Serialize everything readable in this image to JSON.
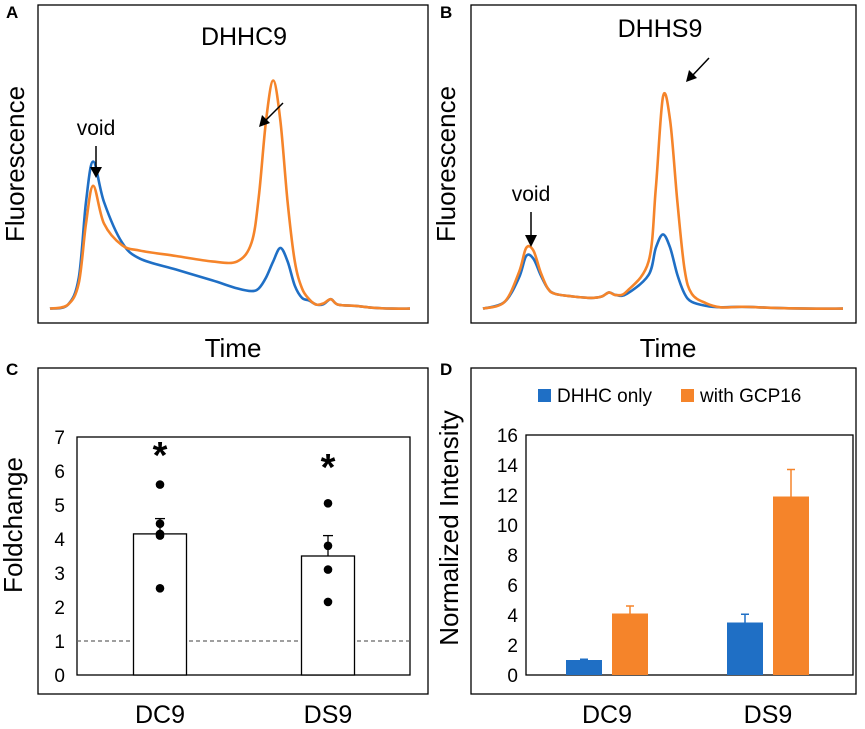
{
  "figure": {
    "colors": {
      "blue": "#1f6fc5",
      "orange": "#f5842a",
      "axis": "#000000",
      "ref_line": "#666666"
    }
  },
  "chart_data": [
    {
      "panel": "A",
      "type": "line",
      "title": "DHHC9",
      "xlabel": "Time",
      "ylabel": "Fluorescence",
      "annotations": [
        "void"
      ],
      "x": [
        0,
        5,
        8,
        10,
        12,
        15,
        20,
        25,
        35,
        45,
        52,
        56,
        58,
        60,
        62,
        64,
        66,
        68,
        70,
        72,
        74,
        76,
        78,
        80,
        85,
        90,
        95,
        100
      ],
      "series": [
        {
          "name": "DHHC only",
          "color": "#1f6fc5",
          "values": [
            0.5,
            2,
            12,
            40,
            55,
            40,
            25,
            19,
            15,
            11,
            8,
            7,
            8,
            12,
            18,
            23,
            18,
            9,
            4.5,
            3.5,
            2,
            2.2,
            4,
            2,
            1.5,
            0.8,
            0.5,
            0.5
          ]
        },
        {
          "name": "with GCP16",
          "color": "#f5842a",
          "values": [
            0.5,
            2,
            10,
            32,
            46,
            32,
            24,
            22,
            20,
            18,
            18,
            25,
            42,
            70,
            85,
            70,
            40,
            18,
            8,
            4,
            2,
            2.5,
            4,
            2,
            1.5,
            0.8,
            0.5,
            0.5
          ]
        }
      ]
    },
    {
      "panel": "B",
      "type": "line",
      "title": "DHHS9",
      "xlabel": "Time",
      "ylabel": "Fluorescence",
      "annotations": [
        "void"
      ],
      "x": [
        0,
        6,
        10,
        12,
        14,
        16,
        18,
        20,
        25,
        30,
        33,
        35,
        37,
        40,
        46,
        48,
        50,
        52,
        54,
        56,
        58,
        62,
        66,
        72,
        80,
        90,
        100
      ],
      "series": [
        {
          "name": "DHHC only",
          "color": "#1f6fc5",
          "values": [
            0.5,
            3,
            12,
            20,
            19,
            13,
            8,
            6,
            5,
            4.5,
            5,
            6.5,
            5.5,
            6,
            13,
            23,
            28,
            23,
            13,
            6,
            3,
            1.5,
            1,
            1.2,
            0.8,
            0.5,
            0.5
          ]
        },
        {
          "name": "with GCP16",
          "color": "#f5842a",
          "values": [
            0.5,
            3,
            14,
            23,
            22,
            14,
            8,
            6,
            5,
            4.5,
            5,
            6.5,
            5.5,
            7,
            18,
            45,
            79,
            70,
            40,
            15,
            6,
            2.5,
            1,
            1.2,
            0.8,
            0.5,
            0.5
          ]
        }
      ]
    },
    {
      "panel": "C",
      "type": "bar",
      "xlabel": "",
      "ylabel": "Foldchange",
      "categories": [
        "DC9",
        "DS9"
      ],
      "values": [
        4.15,
        3.5
      ],
      "errors": [
        0.45,
        0.6
      ],
      "points": [
        [
          5.6,
          4.45,
          4.15,
          4.1,
          2.55
        ],
        [
          5.05,
          3.8,
          3.1,
          2.15
        ]
      ],
      "significance": [
        "*",
        "*"
      ],
      "reference_line": 1,
      "ylim": [
        0,
        7
      ],
      "yticks": [
        "0",
        "1",
        "2",
        "3",
        "4",
        "5",
        "6",
        "7"
      ]
    },
    {
      "panel": "D",
      "type": "bar",
      "xlabel": "",
      "ylabel": "Normalized Intensity",
      "categories": [
        "DC9",
        "DS9"
      ],
      "series": [
        {
          "name": "DHHC only",
          "color": "#1f6fc5",
          "values": [
            1.0,
            3.5
          ],
          "errors": [
            0.05,
            0.55
          ]
        },
        {
          "name": "with GCP16",
          "color": "#f5842a",
          "values": [
            4.1,
            11.9
          ],
          "errors": [
            0.5,
            1.8
          ]
        }
      ],
      "ylim": [
        0,
        16
      ],
      "yticks": [
        "0",
        "2",
        "4",
        "6",
        "8",
        "10",
        "12",
        "14",
        "16"
      ],
      "legend_position": "top"
    }
  ]
}
